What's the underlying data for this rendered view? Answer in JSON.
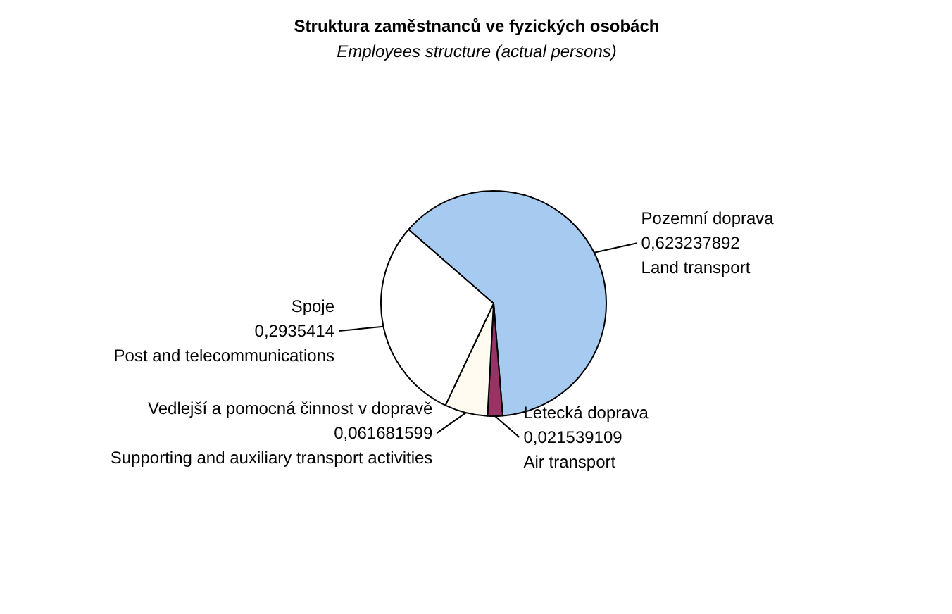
{
  "chart_data": {
    "type": "pie",
    "title": "Struktura zaměstnanců ve fyzických osobách",
    "subtitle": "Employees structure (actual persons)",
    "categories": [
      "Pozemní doprava\nLand transport",
      "Letecká doprava\nAir transport",
      "Vedlejší a pomocná činnost v dopravě\nSupporting and auxiliary transport activities",
      "Spoje\nPost and telecommunications"
    ],
    "values": [
      0.623237892,
      0.021539109,
      0.061681599,
      0.2935414
    ],
    "value_labels": [
      "0,623237892",
      "0,021539109",
      "0,061681599",
      "0,2935414"
    ],
    "colors": [
      "#a6caf0",
      "#993366",
      "#fffbf0",
      "#ffffff"
    ]
  }
}
